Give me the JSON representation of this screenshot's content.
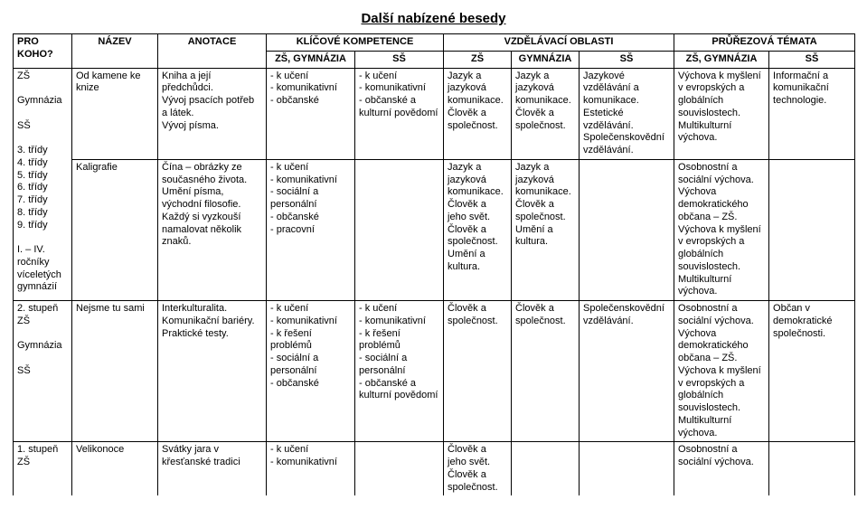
{
  "title": "Další nabízené besedy",
  "headers": {
    "col0": "PRO KOHO?",
    "col1": "NÁZEV",
    "col2": "ANOTACE",
    "group1": "KLÍČOVÉ KOMPETENCE",
    "group2": "VZDĚLÁVACÍ OBLASTI",
    "group3": "PRŮŘEZOVÁ TÉMATA",
    "sub_zs_gym": "ZŠ, GYMNÁZIA",
    "sub_ss": "SŠ",
    "sub_zs": "ZŠ",
    "sub_gym": "GYMNÁZIA"
  },
  "rows": [
    {
      "koho": "ZŠ\n\nGymnázia\n\nSŠ\n\n3. třídy\n4. třídy\n5. třídy\n6. třídy\n7. třídy\n8. třídy\n9. třídy\n\nI. – IV.\nročníky\nvíceletých\ngymnázií",
      "nazev": "Od kamene ke knize",
      "anotace": "Kniha a její předchůdci.\nVývoj psacích potřeb a látek.\nVývoj písma.",
      "kk_zsgym": "- k učení\n- komunikativní\n- občanské",
      "kk_ss": "- k učení\n- komunikativní\n- občanské a kulturní povědomí",
      "vo_zs": "Jazyk a jazyková komunikace.\nČlověk a společnost.",
      "vo_gym": "Jazyk a jazyková komunikace.\nČlověk a společnost.",
      "vo_ss": "Jazykové vzdělávání a komunikace.\nEstetické vzdělávání.\nSpolečenskovědní vzdělávání.",
      "pt_zsgym": "Výchova k myšlení v evropských a globálních souvislostech.\nMultikulturní výchova.",
      "pt_ss": "Informační a komunikační technologie."
    },
    {
      "nazev": "Kaligrafie",
      "anotace": "Čína – obrázky ze současného života.\nUmění písma, východní filosofie.\nKaždý si vyzkouší namalovat několik znaků.",
      "kk_zsgym": "- k učení\n- komunikativní\n- sociální a personální\n- občanské\n- pracovní",
      "kk_ss": "",
      "vo_zs": "Jazyk a jazyková komunikace.\nČlověk a jeho svět.\nČlověk a společnost.\nUmění a kultura.",
      "vo_gym": "Jazyk a jazyková komunikace.\nČlověk a společnost.\nUmění a kultura.",
      "vo_ss": "",
      "pt_zsgym": "Osobnostní a sociální výchova.\nVýchova demokratického občana – ZŠ.\nVýchova k myšlení v evropských a globálních souvislostech.\nMultikulturní výchova.",
      "pt_ss": ""
    },
    {
      "koho": "2. stupeň\nZŠ\n\nGymnázia\n\nSŠ",
      "nazev": "Nejsme tu sami",
      "anotace": "Interkulturalita.\nKomunikační bariéry.\nPraktické testy.",
      "kk_zsgym": "- k učení\n- komunikativní\n- k řešení problémů\n- sociální a personální\n- občanské",
      "kk_ss": "- k učení\n- komunikativní\n- k řešení problémů\n- sociální a personální\n- občanské a kulturní povědomí",
      "vo_zs": "Člověk a společnost.",
      "vo_gym": "Člověk a společnost.",
      "vo_ss": "Společenskovědní vzdělávání.",
      "pt_zsgym": "Osobnostní a sociální výchova.\nVýchova demokratického občana – ZŠ.\nVýchova k myšlení v evropských a globálních souvislostech.\nMultikulturní výchova.",
      "pt_ss": "Občan v demokratické společnosti."
    },
    {
      "koho": "1. stupeň\nZŠ",
      "nazev": "Velikonoce",
      "anotace": "Svátky jara v křesťanské tradici",
      "kk_zsgym": "- k učení\n- komunikativní",
      "kk_ss": "",
      "vo_zs": "Člověk a jeho svět.\nČlověk a společnost.",
      "vo_gym": "",
      "vo_ss": "",
      "pt_zsgym": "Osobnostní a sociální výchova.",
      "pt_ss": ""
    }
  ]
}
